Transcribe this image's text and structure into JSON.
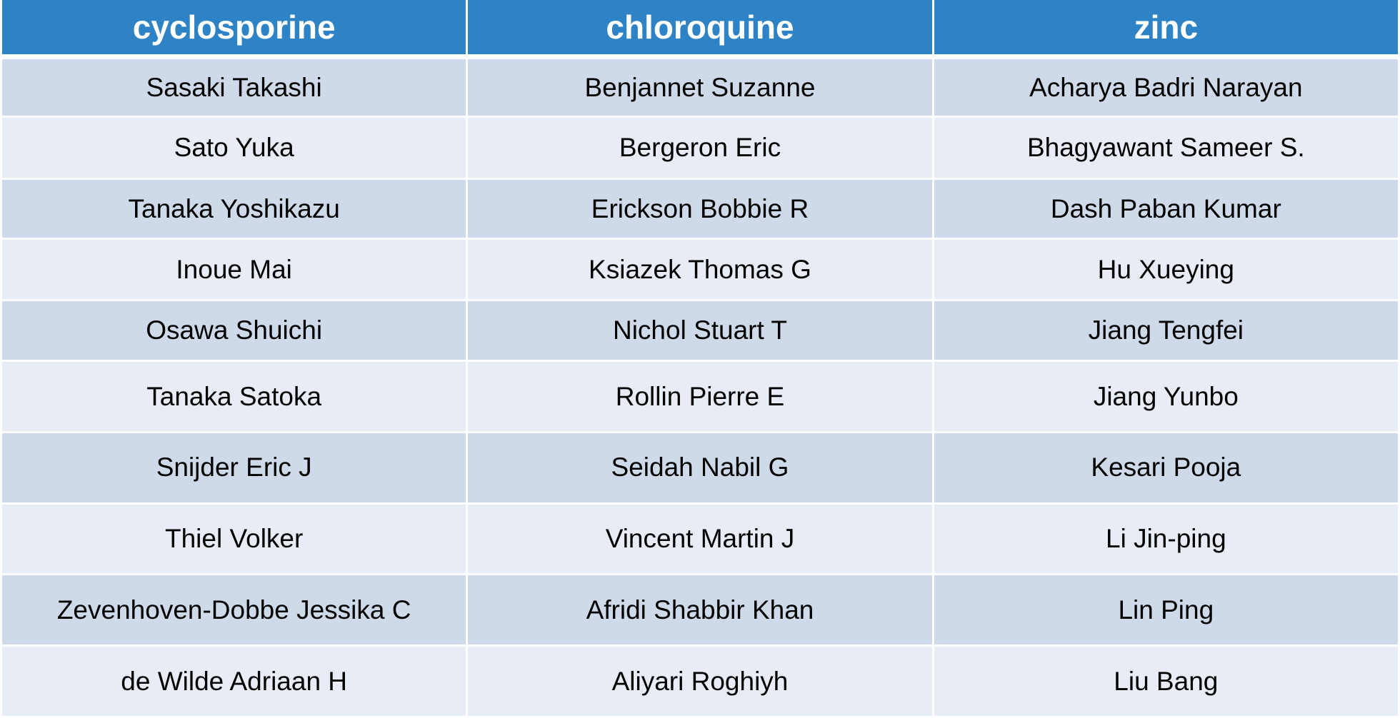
{
  "table": {
    "headers": [
      "cyclosporine",
      "chloroquine",
      "zinc"
    ],
    "rows": [
      [
        "Sasaki Takashi",
        "Benjannet Suzanne",
        "Acharya Badri Narayan"
      ],
      [
        "Sato Yuka",
        "Bergeron Eric",
        "Bhagyawant Sameer S."
      ],
      [
        "Tanaka Yoshikazu",
        "Erickson Bobbie R",
        "Dash Paban Kumar"
      ],
      [
        "Inoue Mai",
        "Ksiazek Thomas G",
        "Hu Xueying"
      ],
      [
        "Osawa Shuichi",
        "Nichol Stuart T",
        "Jiang Tengfei"
      ],
      [
        "Tanaka Satoka",
        "Rollin Pierre E",
        "Jiang Yunbo"
      ],
      [
        "Snijder Eric J",
        "Seidah Nabil G",
        "Kesari Pooja"
      ],
      [
        "Thiel Volker",
        "Vincent Martin J",
        "Li Jin-ping"
      ],
      [
        "Zevenhoven-Dobbe Jessika C",
        "Afridi Shabbir Khan",
        "Lin Ping"
      ],
      [
        "de Wilde Adriaan H",
        "Aliyari Roghiyh",
        "Liu Bang"
      ]
    ]
  },
  "colors": {
    "header_background": "#2E83C6",
    "header_text": "#FFFFFF",
    "row_odd": "#CED9E9",
    "row_even": "#E8EDF5",
    "cell_text": "#000000"
  }
}
